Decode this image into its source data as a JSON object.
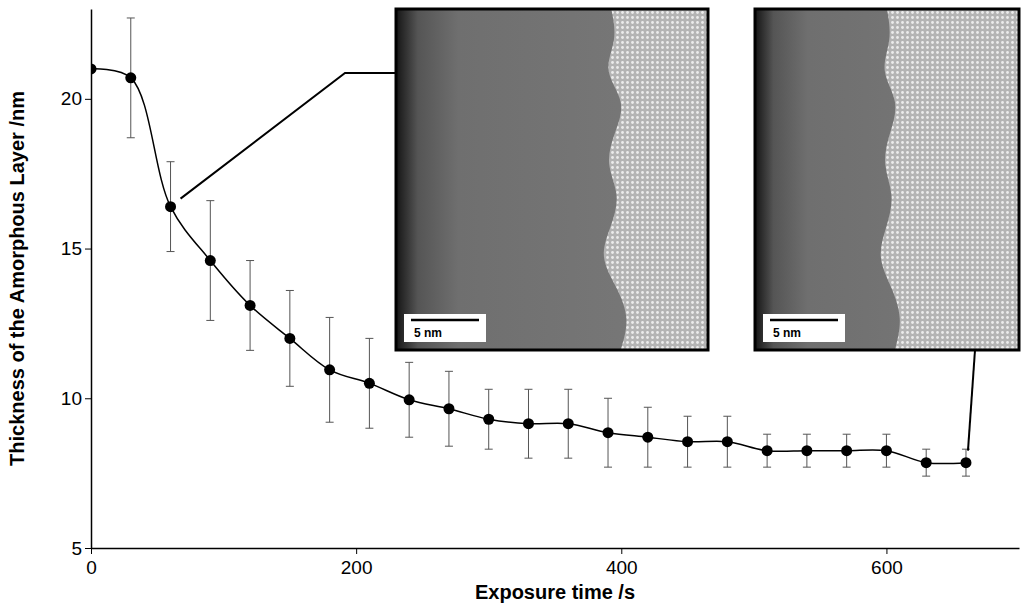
{
  "chart_data": {
    "type": "line",
    "x_label": "Exposure time /s",
    "y_label": "Thickness of the Amorphous Layer /nm",
    "x": [
      0,
      30,
      60,
      90,
      120,
      150,
      180,
      210,
      240,
      270,
      300,
      330,
      360,
      390,
      420,
      450,
      480,
      510,
      540,
      570,
      600,
      630,
      660
    ],
    "series": [
      {
        "values": [
          21.0,
          20.7,
          16.4,
          14.6,
          13.1,
          12.0,
          10.95,
          10.5,
          9.95,
          9.65,
          9.3,
          9.15,
          9.15,
          8.85,
          8.7,
          8.55,
          8.55,
          8.25,
          8.25,
          8.25,
          8.25,
          7.85,
          7.85
        ],
        "errors": [
          0,
          2.0,
          1.5,
          2.0,
          1.5,
          1.6,
          1.75,
          1.5,
          1.25,
          1.25,
          1.0,
          1.15,
          1.15,
          1.15,
          1.0,
          0.85,
          0.85,
          0.55,
          0.55,
          0.55,
          0.55,
          0.45,
          0.45
        ],
        "color": "#000000",
        "marker": "circle",
        "line_style": "smooth"
      }
    ],
    "xlim": [
      0,
      700
    ],
    "xticks": [
      0,
      200,
      400,
      600
    ],
    "ylim": [
      5,
      23
    ],
    "yticks": [
      5,
      10,
      15,
      20
    ],
    "annotations": [
      {
        "text": "5 nm"
      },
      {
        "text": "5 nm"
      }
    ]
  }
}
